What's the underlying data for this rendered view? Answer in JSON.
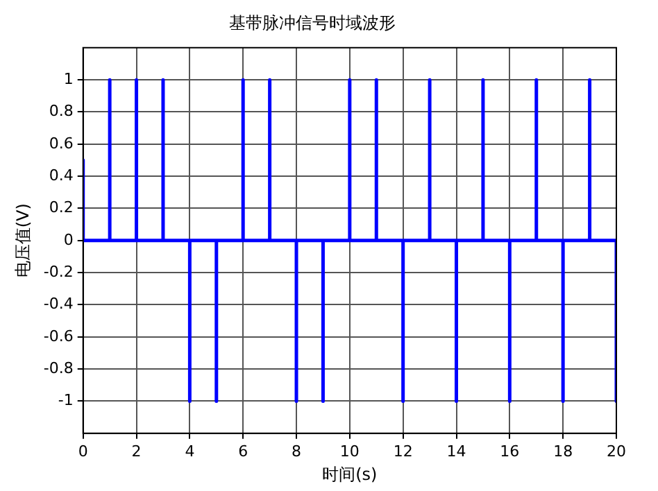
{
  "chart_data": {
    "type": "line",
    "title": "基带脉冲信号时域波形",
    "xlabel": "时间(s)",
    "ylabel": "电压值(V)",
    "series": [
      {
        "color": "#0000ff",
        "x": [
          0,
          0,
          1,
          1,
          1,
          2,
          2,
          2,
          3,
          3,
          3,
          4,
          4,
          4,
          5,
          5,
          5,
          6,
          6,
          6,
          7,
          7,
          7,
          8,
          8,
          8,
          9,
          9,
          9,
          10,
          10,
          10,
          11,
          11,
          11,
          12,
          12,
          12,
          13,
          13,
          13,
          14,
          14,
          14,
          15,
          15,
          15,
          16,
          16,
          16,
          17,
          17,
          17,
          18,
          18,
          18,
          19,
          19,
          19,
          20,
          20
        ],
        "values": [
          0.5,
          0,
          0,
          1,
          0,
          0,
          1,
          0,
          0,
          1,
          0,
          0,
          -1,
          0,
          0,
          -1,
          0,
          0,
          1,
          0,
          0,
          1,
          0,
          0,
          -1,
          0,
          0,
          -1,
          0,
          0,
          1,
          0,
          0,
          1,
          0,
          0,
          -1,
          0,
          0,
          1,
          0,
          0,
          -1,
          0,
          0,
          1,
          0,
          0,
          -1,
          0,
          0,
          1,
          0,
          0,
          -1,
          0,
          0,
          1,
          0,
          0,
          -1
        ]
      }
    ],
    "xlim": [
      0,
      20
    ],
    "xticks": [
      0,
      2,
      4,
      6,
      8,
      10,
      12,
      14,
      16,
      18,
      20
    ],
    "ylim": [
      -1.2,
      1.2
    ],
    "yticks": [
      -1,
      -0.8,
      -0.6,
      -0.4,
      -0.2,
      0,
      0.2,
      0.4,
      0.6,
      0.8,
      1
    ],
    "grid": true,
    "legend": false,
    "marker": "none",
    "line_style": "solid"
  }
}
